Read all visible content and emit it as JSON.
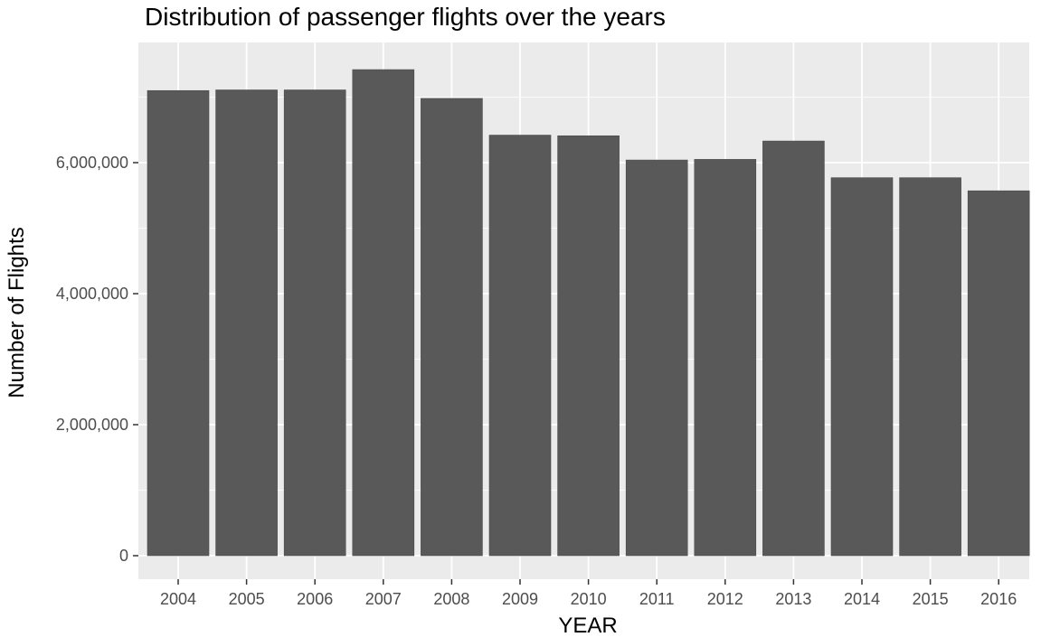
{
  "chart_data": {
    "type": "bar",
    "title": "Distribution of passenger flights over the years",
    "xlabel": "YEAR",
    "ylabel": "Number of Flights",
    "categories": [
      "2004",
      "2005",
      "2006",
      "2007",
      "2008",
      "2009",
      "2010",
      "2011",
      "2012",
      "2013",
      "2014",
      "2015",
      "2016"
    ],
    "values": [
      7100000,
      7110000,
      7110000,
      7420000,
      6980000,
      6420000,
      6410000,
      6040000,
      6050000,
      6330000,
      5770000,
      5770000,
      5570000
    ],
    "ylim": [
      0,
      7800000
    ],
    "yticks": [
      0,
      2000000,
      4000000,
      6000000
    ],
    "ytick_labels": [
      "0",
      "2,000,000",
      "4,000,000",
      "6,000,000"
    ],
    "grid": true,
    "legend": "none",
    "colors": {
      "bar": "#595959",
      "panel": "#ebebeb",
      "grid": "#ffffff",
      "tick": "#333333"
    }
  }
}
